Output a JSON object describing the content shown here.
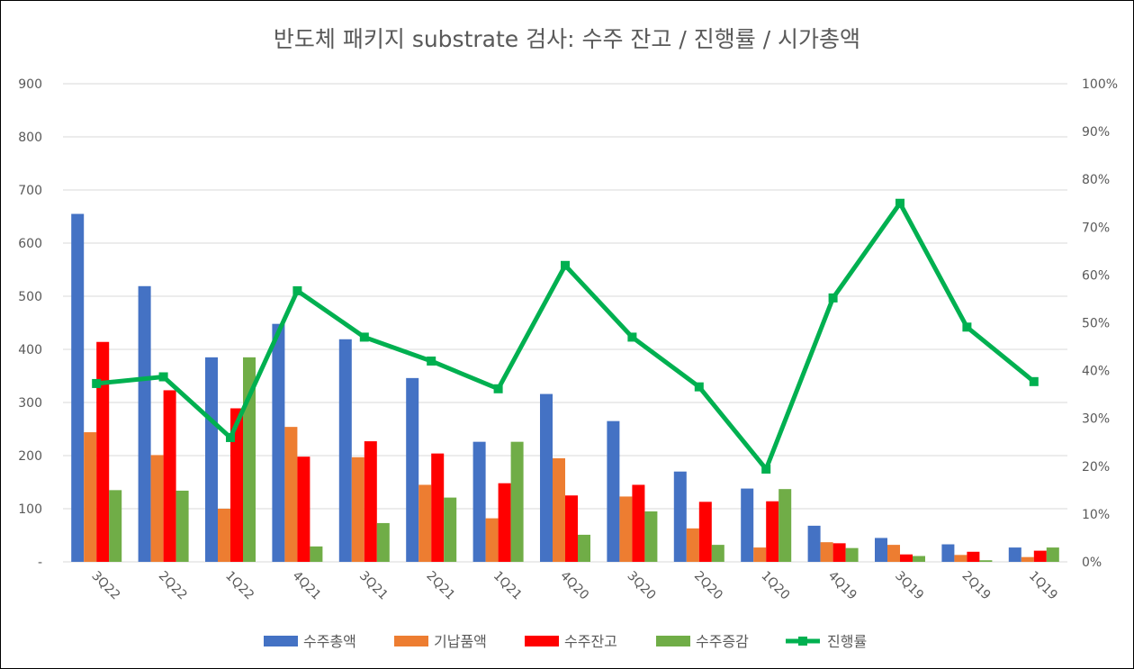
{
  "chart_data": {
    "type": "bar",
    "title": "반도체 패키지 substrate 검사: 수주 잔고 / 진행률 / 시가총액",
    "categories": [
      "3Q22",
      "2Q22",
      "1Q22",
      "4Q21",
      "3Q21",
      "2Q21",
      "1Q21",
      "4Q20",
      "3Q20",
      "2Q20",
      "1Q20",
      "4Q19",
      "3Q19",
      "2Q19",
      "1Q19"
    ],
    "y_left": {
      "min": 0,
      "max": 900,
      "ticks": [
        "-",
        "100",
        "200",
        "300",
        "400",
        "500",
        "600",
        "700",
        "800",
        "900"
      ],
      "grid": true
    },
    "y_right": {
      "min": 0,
      "max": 1,
      "ticks": [
        "0%",
        "10%",
        "20%",
        "30%",
        "40%",
        "50%",
        "60%",
        "70%",
        "80%",
        "90%",
        "100%"
      ]
    },
    "series": [
      {
        "name": "수주총액",
        "kind": "bar",
        "axis": "left",
        "color": "#4472C4",
        "values": [
          655,
          519,
          385,
          448,
          419,
          346,
          226,
          316,
          265,
          170,
          138,
          68,
          45,
          33,
          27
        ]
      },
      {
        "name": "기납품액",
        "kind": "bar",
        "axis": "left",
        "color": "#ED7D31",
        "values": [
          244,
          201,
          100,
          254,
          197,
          145,
          82,
          195,
          123,
          63,
          27,
          37,
          32,
          13,
          9
        ]
      },
      {
        "name": "수주잔고",
        "kind": "bar",
        "axis": "left",
        "color": "#FF0000",
        "values": [
          414,
          323,
          289,
          198,
          227,
          204,
          148,
          125,
          145,
          113,
          114,
          35,
          14,
          19,
          21
        ]
      },
      {
        "name": "수주증감",
        "kind": "bar",
        "axis": "left",
        "color": "#70AD47",
        "values": [
          135,
          134,
          385,
          29,
          73,
          121,
          226,
          51,
          95,
          32,
          137,
          26,
          11,
          3,
          27
        ]
      },
      {
        "name": "진행률",
        "kind": "line",
        "axis": "right",
        "color": "#00B050",
        "values": [
          0.373,
          0.387,
          0.26,
          0.567,
          0.47,
          0.42,
          0.362,
          0.62,
          0.47,
          0.366,
          0.194,
          0.552,
          0.75,
          0.491,
          0.377
        ]
      }
    ],
    "legend_position": "bottom"
  }
}
